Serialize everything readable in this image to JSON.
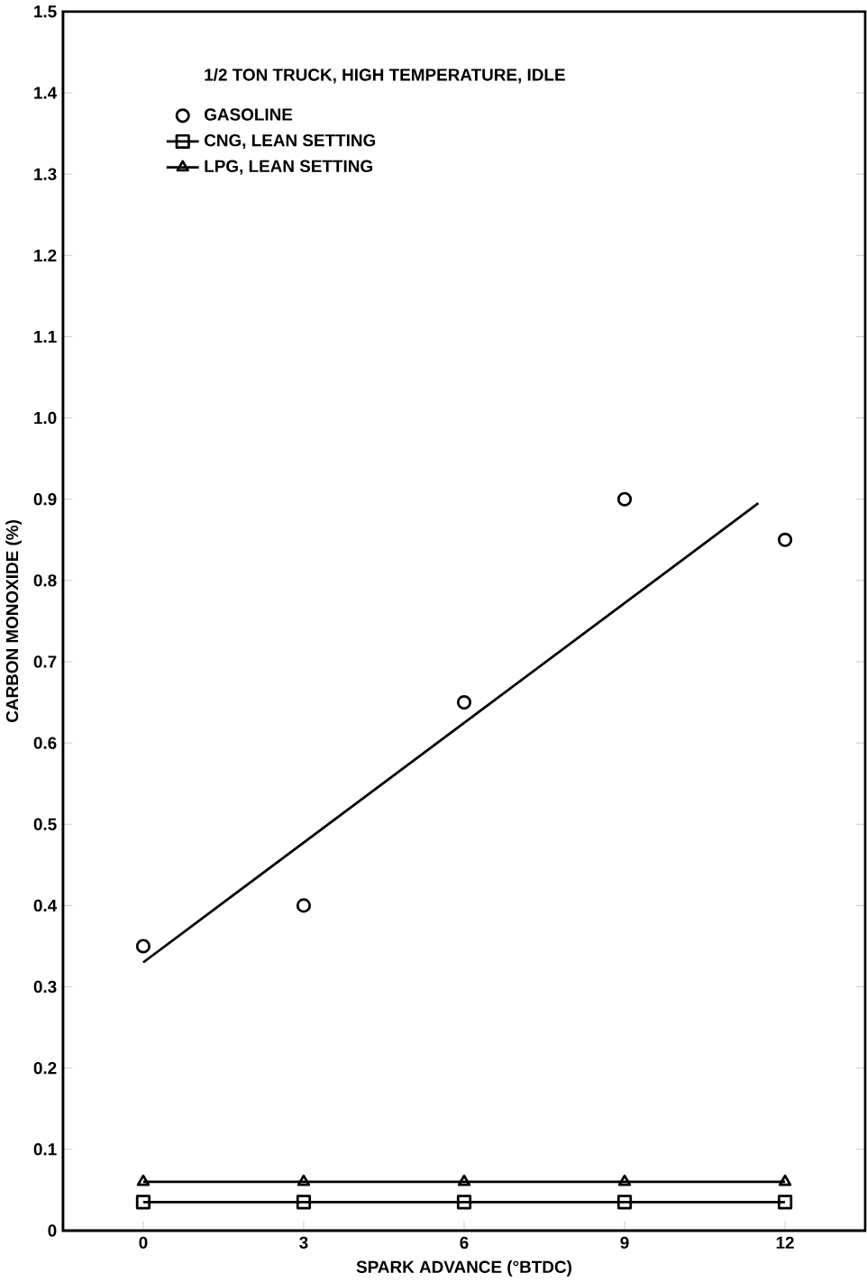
{
  "chart_data": {
    "type": "scatter",
    "xlabel": "SPARK ADVANCE (°BTDC)",
    "ylabel": "CARBON MONOXIDE (%)",
    "legend_title": "1/2 TON TRUCK, HIGH TEMPERATURE, IDLE",
    "legend": "top left",
    "xlim": [
      -1.5,
      13.5
    ],
    "ylim": [
      0,
      1.5
    ],
    "xticks": [
      0,
      3,
      6,
      9,
      12
    ],
    "yticks": [
      0,
      0.1,
      0.2,
      0.3,
      0.4,
      0.5,
      0.6,
      0.7,
      0.8,
      0.9,
      {
        "value": 1.0,
        "label": "1.0"
      },
      1.1,
      1.2,
      1.3,
      1.4,
      1.5
    ],
    "grid": false,
    "series": [
      {
        "name": "GASOLINE",
        "marker": "circle",
        "color": "#000000",
        "x": [
          0,
          3,
          6,
          9,
          12
        ],
        "values": [
          0.35,
          0.4,
          0.65,
          0.9,
          0.85
        ]
      },
      {
        "name": "CNG, LEAN SETTING",
        "type": "line",
        "marker": "square",
        "color": "#000000",
        "x": [
          0,
          3,
          6,
          9,
          12
        ],
        "values": [
          0.035,
          0.035,
          0.035,
          0.035,
          0.035
        ]
      },
      {
        "name": "LPG, LEAN SETTING",
        "type": "line",
        "marker": "triangle",
        "color": "#000000",
        "x": [
          0,
          3,
          6,
          9,
          12
        ],
        "values": [
          0.06,
          0.06,
          0.06,
          0.06,
          0.06
        ]
      },
      {
        "type": "line",
        "marker": "none",
        "color": "#000000",
        "x": [
          0,
          11.5
        ],
        "values": [
          0.33,
          0.895
        ]
      }
    ]
  }
}
